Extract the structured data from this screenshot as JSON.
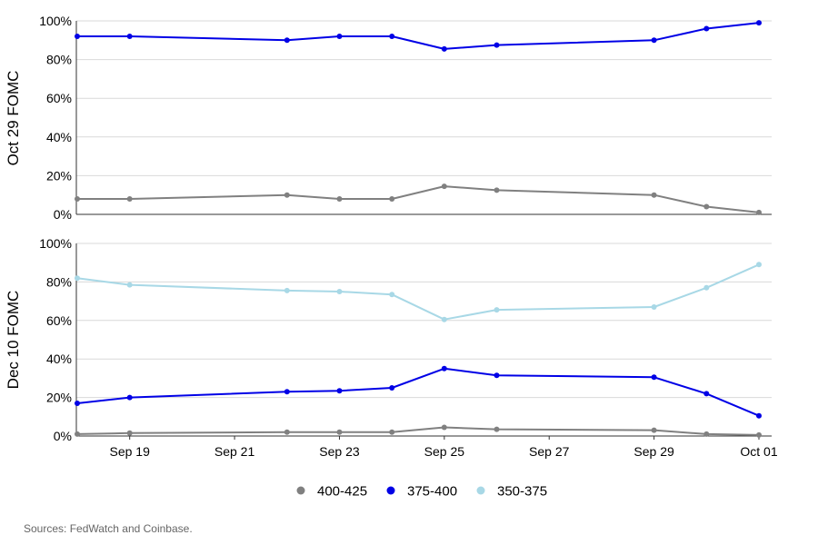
{
  "source_note": "Sources: FedWatch and Coinbase.",
  "colors": {
    "400-425": "#808080",
    "375-400": "#0000e6",
    "350-375": "#a8d8e6"
  },
  "legend": [
    "400-425",
    "375-400",
    "350-375"
  ],
  "chart_data": [
    {
      "type": "line",
      "ylabel": "Oct 29 FOMC",
      "ylim": [
        0,
        100
      ],
      "yticks": [
        "0%",
        "20%",
        "40%",
        "60%",
        "80%",
        "100%"
      ],
      "x": [
        "Sep 18",
        "Sep 19",
        "Sep 22",
        "Sep 23",
        "Sep 24",
        "Sep 25",
        "Sep 26",
        "Sep 29",
        "Sep 30",
        "Oct 01"
      ],
      "xticks": [
        "Sep 19",
        "Sep 21",
        "Sep 23",
        "Sep 25",
        "Sep 27",
        "Sep 29",
        "Oct 01"
      ],
      "grid": true,
      "series": [
        {
          "name": "400-425",
          "values": [
            8,
            8,
            10,
            8,
            8,
            14.5,
            12.5,
            10,
            4,
            1
          ]
        },
        {
          "name": "375-400",
          "values": [
            92,
            92,
            90,
            92,
            92,
            85.5,
            87.5,
            90,
            96,
            99
          ]
        }
      ]
    },
    {
      "type": "line",
      "ylabel": "Dec 10 FOMC",
      "ylim": [
        0,
        100
      ],
      "yticks": [
        "0%",
        "20%",
        "40%",
        "60%",
        "80%",
        "100%"
      ],
      "x": [
        "Sep 18",
        "Sep 19",
        "Sep 22",
        "Sep 23",
        "Sep 24",
        "Sep 25",
        "Sep 26",
        "Sep 29",
        "Sep 30",
        "Oct 01"
      ],
      "xticks": [
        "Sep 19",
        "Sep 21",
        "Sep 23",
        "Sep 25",
        "Sep 27",
        "Sep 29",
        "Oct 01"
      ],
      "grid": true,
      "series": [
        {
          "name": "400-425",
          "values": [
            1,
            1.5,
            2,
            2,
            2,
            4.5,
            3.5,
            3,
            1,
            0.5
          ]
        },
        {
          "name": "375-400",
          "values": [
            17,
            20,
            23,
            23.5,
            25,
            35,
            31.5,
            30.5,
            22,
            10.5
          ]
        },
        {
          "name": "350-375",
          "values": [
            82,
            78.5,
            75.5,
            75,
            73.5,
            60.5,
            65.5,
            67,
            77,
            89
          ]
        }
      ]
    }
  ]
}
